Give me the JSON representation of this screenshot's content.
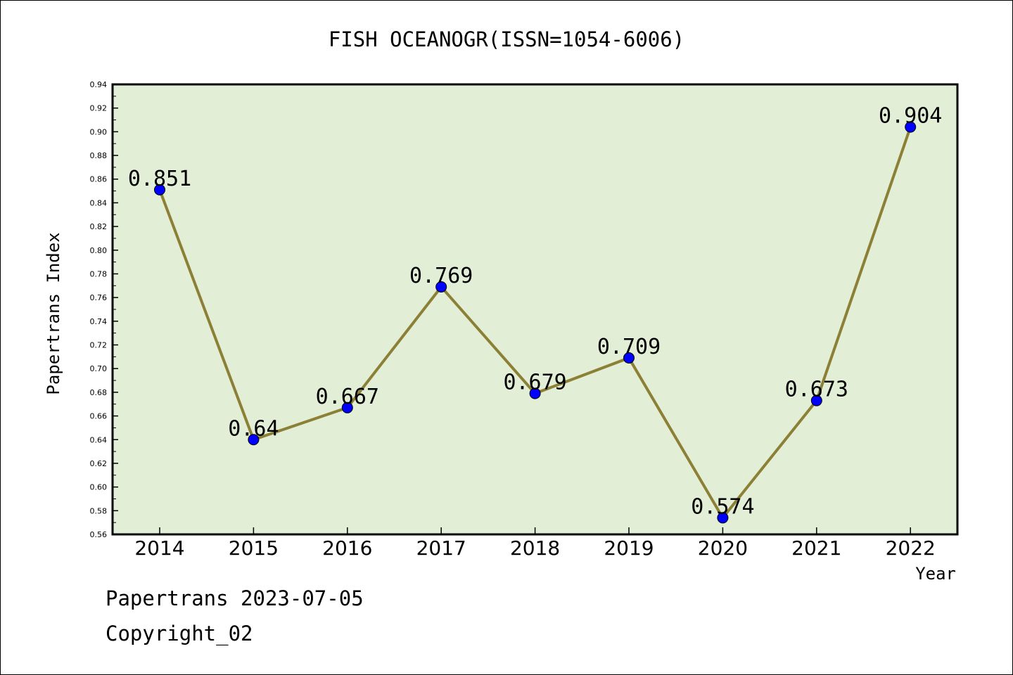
{
  "chart_data": {
    "type": "line",
    "title": "FISH OCEANOGR(ISSN=1054-6006)",
    "xlabel": "Year",
    "ylabel": "Papertrans Index",
    "categories": [
      "2014",
      "2015",
      "2016",
      "2017",
      "2018",
      "2019",
      "2020",
      "2021",
      "2022"
    ],
    "series": [
      {
        "values": [
          0.851,
          0.64,
          0.667,
          0.769,
          0.679,
          0.709,
          0.574,
          0.673,
          0.904
        ],
        "labels": [
          "0.851",
          "0.64",
          "0.667",
          "0.769",
          "0.679",
          "0.709",
          "0.574",
          "0.673",
          "0.904"
        ]
      }
    ],
    "ylim": [
      0.56,
      0.94
    ],
    "yticks": [
      "0.56",
      "0.58",
      "0.60",
      "0.62",
      "0.64",
      "0.66",
      "0.68",
      "0.70",
      "0.72",
      "0.74",
      "0.76",
      "0.78",
      "0.80",
      "0.82",
      "0.84",
      "0.86",
      "0.88",
      "0.90",
      "0.92",
      "0.94"
    ],
    "grid": false,
    "legend": "none"
  },
  "colors": {
    "plot_background": "#e2efd6",
    "line": "#8b8036",
    "marker": "#0000ff"
  },
  "footer": {
    "line1": "Papertrans 2023-07-05",
    "line2": "Copyright_02"
  }
}
